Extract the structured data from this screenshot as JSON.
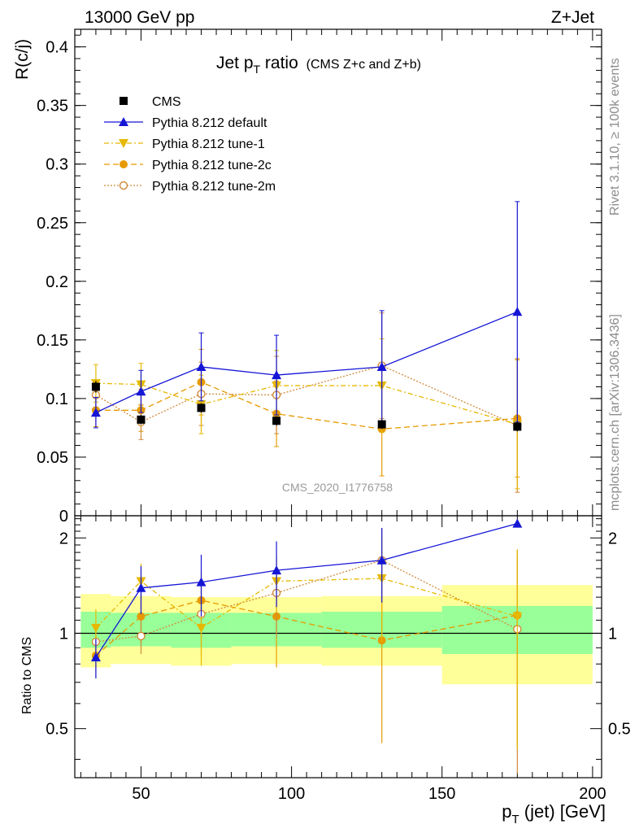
{
  "header": {
    "left": "13000 GeV pp",
    "right": "Z+Jet"
  },
  "side_labels": {
    "rivet": "Rivet 3.1.10, ≥ 100k events",
    "source": "mcplots.cern.ch [arXiv:1306.3436]"
  },
  "watermark": "CMS_2020_I1776758",
  "chart_data": {
    "type": "line",
    "title_main": "Jet p",
    "title_sub": "T",
    "title_word": " ratio",
    "title_note": "(CMS  Z+c and Z+b)",
    "ylabel": "R(c/j)",
    "ratio_ylabel": "Ratio to CMS",
    "xlabel_p": "p",
    "xlabel_sub": "T",
    "xlabel_rest": " (jet) [GeV]",
    "xlim": [
      28,
      203
    ],
    "ylim": [
      0,
      0.415
    ],
    "ratio_ylim": [
      0.35,
      2.35
    ],
    "ratio_scale": "log",
    "x_ticks": [
      "50",
      "100",
      "150",
      "200"
    ],
    "y_ticks": [
      "0",
      "0.05",
      "0.1",
      "0.15",
      "0.2",
      "0.25",
      "0.3",
      "0.35",
      "0.4"
    ],
    "ratio_ticks": [
      "0.5",
      "1",
      "2"
    ],
    "bins": [
      [
        30,
        40
      ],
      [
        40,
        60
      ],
      [
        60,
        80
      ],
      [
        80,
        110
      ],
      [
        110,
        150
      ],
      [
        150,
        200
      ]
    ],
    "x": [
      35,
      50,
      70,
      95,
      130,
      175
    ],
    "bands": {
      "inner": [
        [
          0.9,
          1.17
        ],
        [
          0.91,
          1.16
        ],
        [
          0.9,
          1.16
        ],
        [
          0.91,
          1.16
        ],
        [
          0.9,
          1.17
        ],
        [
          0.86,
          1.22
        ]
      ],
      "outer": [
        [
          0.78,
          1.33
        ],
        [
          0.8,
          1.31
        ],
        [
          0.79,
          1.3
        ],
        [
          0.8,
          1.3
        ],
        [
          0.79,
          1.31
        ],
        [
          0.69,
          1.42
        ]
      ]
    },
    "series": [
      {
        "name": "CMS",
        "color": "#000000",
        "marker": "square",
        "dash": "",
        "values": [
          0.11,
          0.082,
          0.092,
          0.081,
          0.078,
          0.076
        ],
        "errors": [
          0.005,
          0.004,
          0.004,
          0.004,
          0.004,
          0.004
        ]
      },
      {
        "name": "Pythia 8.212 default",
        "color": "#1515d6",
        "marker": "triangle-up",
        "dash": "",
        "values": [
          0.088,
          0.106,
          0.127,
          0.12,
          0.127,
          0.174
        ],
        "errors": [
          0.013,
          0.018,
          0.029,
          0.034,
          0.048,
          0.094
        ],
        "ratio": [
          0.84,
          1.39,
          1.45,
          1.58,
          1.7,
          2.22
        ],
        "ratio_errors": [
          0.12,
          0.24,
          0.32,
          0.37,
          0.45,
          0.0
        ]
      },
      {
        "name": "Pythia 8.212 tune-1",
        "color": "#e6b800",
        "marker": "triangle-down",
        "dash": "6,3,2,3",
        "values": [
          0.113,
          0.112,
          0.095,
          0.111,
          0.111,
          0.078
        ],
        "errors": [
          0.016,
          0.018,
          0.025,
          0.03,
          0.04,
          0.055
        ],
        "ratio": [
          1.04,
          1.46,
          1.04,
          1.46,
          1.49,
          1.13
        ],
        "ratio_errors": [
          0.15,
          0.2,
          0.25,
          0.3,
          0.55,
          0.7
        ]
      },
      {
        "name": "Pythia 8.212 tune-2c",
        "color": "#e69a00",
        "marker": "circle-filled",
        "dash": "7,4",
        "values": [
          0.09,
          0.09,
          0.114,
          0.087,
          0.074,
          0.083
        ],
        "errors": [
          0.014,
          0.018,
          0.028,
          0.028,
          0.04,
          0.05
        ],
        "ratio": [
          0.85,
          1.13,
          1.27,
          1.13,
          0.95,
          1.14
        ],
        "ratio_errors": [
          0.12,
          0.2,
          0.3,
          0.35,
          0.5,
          0.7
        ]
      },
      {
        "name": "Pythia 8.212 tune-2m",
        "color": "#d08a3a",
        "marker": "circle-open",
        "dash": "2,2",
        "values": [
          0.103,
          0.08,
          0.104,
          0.103,
          0.128,
          0.077
        ],
        "errors": [
          0.013,
          0.015,
          0.027,
          0.033,
          0.045,
          0.057
        ],
        "ratio": [
          0.94,
          0.98,
          1.15,
          1.34,
          1.7,
          1.03
        ],
        "ratio_errors": [
          0.12,
          0.12,
          0.3,
          0.37,
          0.45,
          0.7
        ]
      }
    ],
    "legend_position": "top-left"
  }
}
